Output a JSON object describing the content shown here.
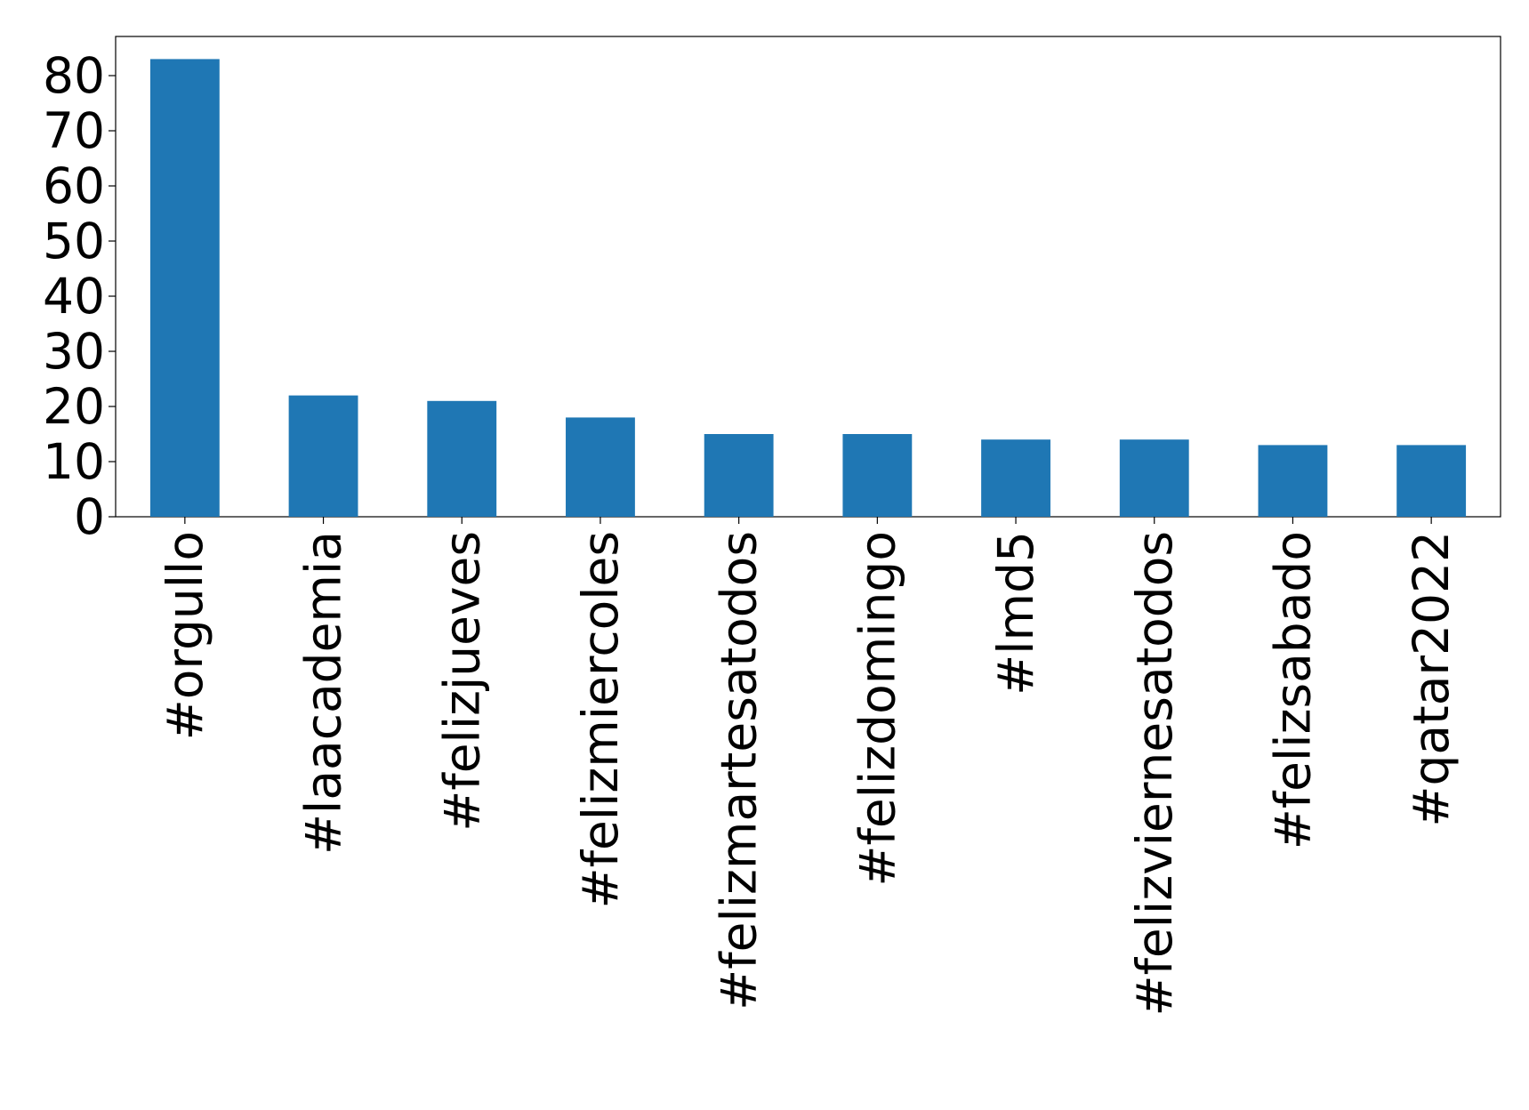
{
  "chart_data": {
    "type": "bar",
    "categories": [
      "#orgullo",
      "#laacademia",
      "#felizjueves",
      "#felizmiercoles",
      "#felizmartesatodos",
      "#felizdomingo",
      "#lmd5",
      "#felizviernesatodos",
      "#felizsabado",
      "#qatar2022"
    ],
    "values": [
      83,
      22,
      21,
      18,
      15,
      15,
      14,
      14,
      13,
      13
    ],
    "color": "#1f77b4",
    "ylim": [
      0,
      87.1
    ],
    "yticks": [
      0,
      10,
      20,
      30,
      40,
      50,
      60,
      70,
      80
    ],
    "grid": false
  }
}
